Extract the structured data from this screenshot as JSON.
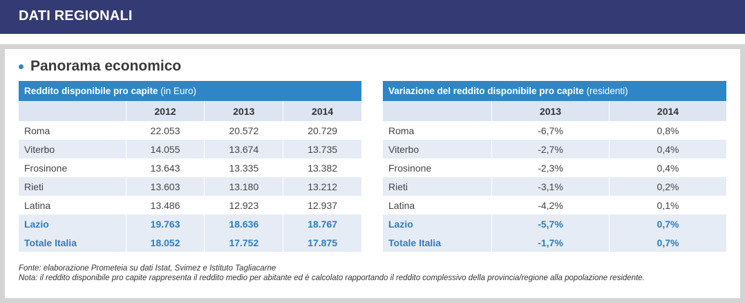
{
  "banner": {
    "title": "DATI REGIONALI"
  },
  "section": {
    "title": "Panorama economico"
  },
  "table_left": {
    "title_bold": "Reddito disponibile pro capite",
    "title_rest": " (in Euro)",
    "columns": [
      "2012",
      "2013",
      "2014"
    ],
    "rows": [
      {
        "name": "Roma",
        "values": [
          "22.053",
          "20.572",
          "20.729"
        ]
      },
      {
        "name": "Viterbo",
        "values": [
          "14.055",
          "13.674",
          "13.735"
        ]
      },
      {
        "name": "Frosinone",
        "values": [
          "13.643",
          "13.335",
          "13.382"
        ]
      },
      {
        "name": "Rieti",
        "values": [
          "13.603",
          "13.180",
          "13.212"
        ]
      },
      {
        "name": "Latina",
        "values": [
          "13.486",
          "12.923",
          "12.937"
        ]
      },
      {
        "name": "Lazio",
        "values": [
          "19.763",
          "18.636",
          "18.767"
        ]
      },
      {
        "name": "Totale Italia",
        "values": [
          "18.052",
          "17.752",
          "17.875"
        ]
      }
    ]
  },
  "table_right": {
    "title_bold": "Variazione del reddito disponibile pro capite",
    "title_rest": " (residenti)",
    "columns": [
      "2013",
      "2014"
    ],
    "rows": [
      {
        "name": "Roma",
        "values": [
          "-6,7%",
          "0,8%"
        ]
      },
      {
        "name": "Viterbo",
        "values": [
          "-2,7%",
          "0,4%"
        ]
      },
      {
        "name": "Frosinone",
        "values": [
          "-2,3%",
          "0,4%"
        ]
      },
      {
        "name": "Rieti",
        "values": [
          "-3,1%",
          "0,2%"
        ]
      },
      {
        "name": "Latina",
        "values": [
          "-4,2%",
          "0,1%"
        ]
      },
      {
        "name": "Lazio",
        "values": [
          "-5,7%",
          "0,7%"
        ]
      },
      {
        "name": "Totale Italia",
        "values": [
          "-1,7%",
          "0,7%"
        ]
      }
    ]
  },
  "notes": {
    "source": "Fonte: elaborazione Prometeia su dati Istat, Svimez e Istituto Tagliacarne",
    "note": "Nota: il reddito disponibile pro capite rappresenta il reddito medio per abitante ed è calcolato rapportando il reddito complessivo della provincia/regione alla popolazione residente."
  },
  "colors": {
    "banner": "#343a73",
    "accent": "#2f86c6",
    "row_alt": "#e6ecf6"
  }
}
